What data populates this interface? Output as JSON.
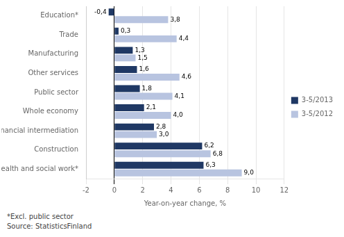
{
  "chart_data": {
    "type": "bar",
    "orientation": "horizontal",
    "categories": [
      "Education*",
      "Trade",
      "Manufacturing",
      "Other services",
      "Public sector",
      "Whole economy",
      "Financial intermediation",
      "Construction",
      "Health and social work*"
    ],
    "series": [
      {
        "name": "3-5/2013",
        "color": "#1F3864",
        "values": [
          -0.4,
          0.3,
          1.3,
          1.6,
          1.8,
          2.1,
          2.8,
          6.2,
          6.3
        ],
        "value_labels": [
          "-0,4",
          "0,3",
          "1,3",
          "1,6",
          "1,8",
          "2,1",
          "2,8",
          "6,2",
          "6,3"
        ]
      },
      {
        "name": "3-5/2012",
        "color": "#B8C4E0",
        "values": [
          3.8,
          4.4,
          1.5,
          4.6,
          4.1,
          4.0,
          3.0,
          6.8,
          9.0
        ],
        "value_labels": [
          "3,8",
          "4,4",
          "1,5",
          "4,6",
          "4,1",
          "4,0",
          "3,0",
          "6,8",
          "9,0"
        ]
      }
    ],
    "xlabel": "Year-on-year change, %",
    "xlim": [
      -2,
      12
    ],
    "xticks": [
      -2,
      0,
      2,
      4,
      6,
      8,
      10,
      12
    ],
    "grid": true,
    "legend": "right",
    "data_labels": true,
    "annotations": [
      "*Excl. public sector",
      "Source: StatisticsFinland"
    ]
  }
}
